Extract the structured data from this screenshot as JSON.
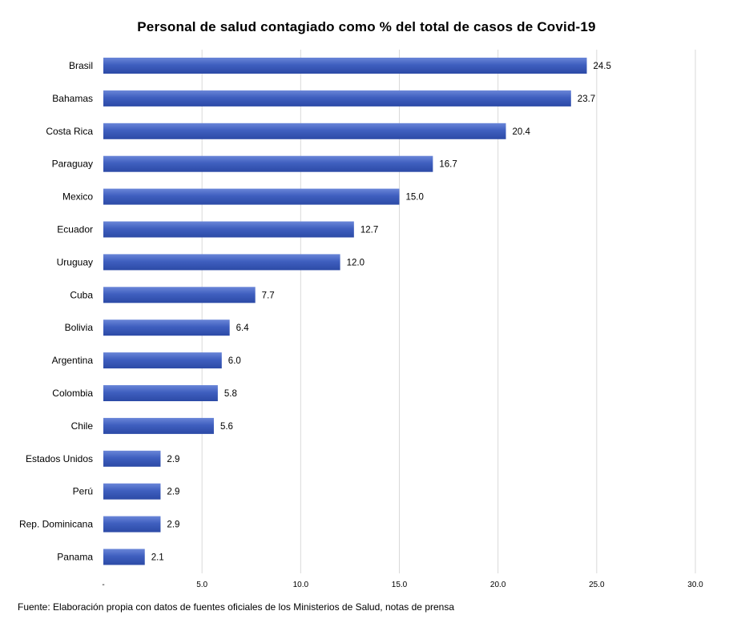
{
  "chart_data": {
    "type": "bar",
    "orientation": "horizontal",
    "title": "Personal de salud contagiado como % del total de casos de Covid-19",
    "categories": [
      "Brasil",
      "Bahamas",
      "Costa Rica",
      "Paraguay",
      "Mexico",
      "Ecuador",
      "Uruguay",
      "Cuba",
      "Bolivia",
      "Argentina",
      "Colombia",
      "Chile",
      "Estados Unidos",
      "Perú",
      "Rep. Dominicana",
      "Panama"
    ],
    "values": [
      24.5,
      23.7,
      20.4,
      16.7,
      15.0,
      12.7,
      12.0,
      7.7,
      6.4,
      6.0,
      5.8,
      5.6,
      2.9,
      2.9,
      2.9,
      2.1
    ],
    "value_labels": [
      "24.5",
      "23.7",
      "20.4",
      "16.7",
      "15.0",
      "12.7",
      "12.0",
      "7.7",
      "6.4",
      "6.0",
      "5.8",
      "5.6",
      "2.9",
      "2.9",
      "2.9",
      "2.1"
    ],
    "x_ticks": [
      "-",
      "5.0",
      "10.0",
      "15.0",
      "20.0",
      "25.0",
      "30.0"
    ],
    "xlim": [
      0,
      30
    ],
    "grid": true,
    "bar_color": "#3f5fbf"
  },
  "source": "Fuente: Elaboración propia con datos de fuentes oficiales de los Ministerios de Salud, notas de prensa"
}
